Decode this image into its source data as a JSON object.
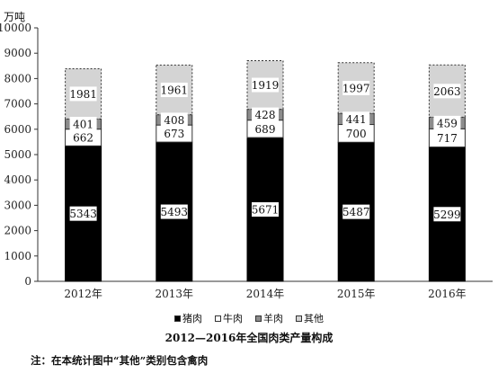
{
  "chart_data": {
    "type": "bar",
    "stacked": true,
    "categories": [
      "2012年",
      "2013年",
      "2014年",
      "2015年",
      "2016年"
    ],
    "series": [
      {
        "name": "猪肉",
        "values": [
          5343,
          5493,
          5671,
          5487,
          5299
        ],
        "color": "#000000"
      },
      {
        "name": "牛肉",
        "values": [
          662,
          673,
          689,
          700,
          717
        ],
        "color": "#ffffff"
      },
      {
        "name": "羊肉",
        "values": [
          401,
          408,
          428,
          441,
          459
        ],
        "color": "#8c8c8c"
      },
      {
        "name": "其他",
        "values": [
          1981,
          1961,
          1919,
          1997,
          2063
        ],
        "color": "#d4d4d4"
      }
    ],
    "y_unit": "万吨",
    "ylim": [
      0,
      10000
    ],
    "yticks": [
      0,
      1000,
      2000,
      3000,
      4000,
      5000,
      6000,
      7000,
      8000,
      9000,
      10000
    ],
    "title": "2012—2016年全国肉类产量构成",
    "note": "注：在本统计图中“其他”类别包含禽肉",
    "legend_position": "bottom",
    "grid": false
  }
}
